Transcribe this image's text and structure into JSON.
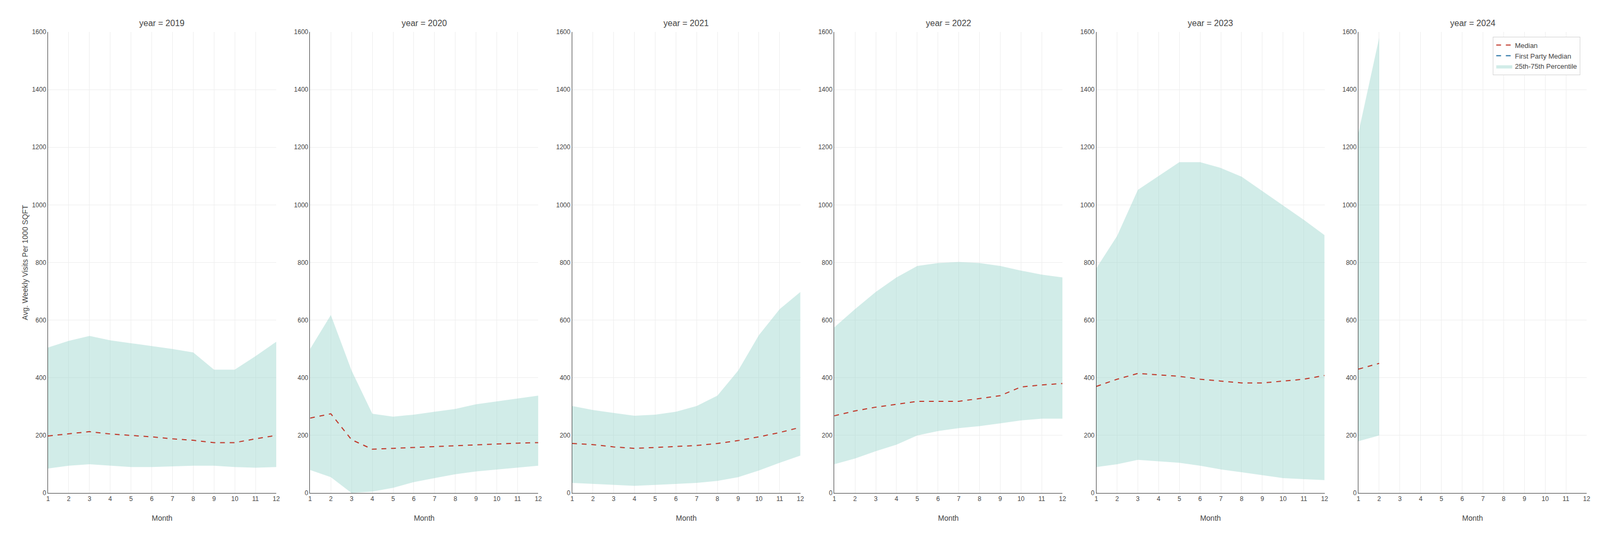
{
  "chart_data": [
    {
      "type": "line",
      "title": "year = 2019",
      "x_label": "Month",
      "y_label": "Avg. Weekly Visits Per 1000 SQFT",
      "x": [
        1,
        2,
        3,
        4,
        5,
        6,
        7,
        8,
        9,
        10,
        11,
        12
      ],
      "xlim": [
        1,
        12
      ],
      "xticks": [
        1,
        2,
        3,
        4,
        5,
        6,
        7,
        8,
        9,
        10,
        11,
        12
      ],
      "ylim": [
        0,
        1600
      ],
      "yticks": [
        0,
        200,
        400,
        600,
        800,
        1000,
        1200,
        1400,
        1600
      ],
      "grid": true,
      "series": [
        {
          "name": "Median",
          "type": "line",
          "color": "#c0392b",
          "line_style": "dashed",
          "values": [
            198,
            205,
            213,
            205,
            200,
            195,
            188,
            183,
            175,
            175,
            188,
            200
          ]
        },
        {
          "name": "25th-75th Percentile",
          "type": "area",
          "color": "#99d4cc",
          "lower": [
            85,
            95,
            100,
            95,
            90,
            90,
            92,
            95,
            95,
            90,
            88,
            90
          ],
          "upper": [
            505,
            528,
            545,
            530,
            520,
            510,
            500,
            488,
            428,
            428,
            475,
            525
          ]
        }
      ]
    },
    {
      "type": "line",
      "title": "year = 2020",
      "x_label": "Month",
      "x": [
        1,
        2,
        3,
        4,
        5,
        6,
        7,
        8,
        9,
        10,
        11,
        12
      ],
      "xlim": [
        1,
        12
      ],
      "xticks": [
        1,
        2,
        3,
        4,
        5,
        6,
        7,
        8,
        9,
        10,
        11,
        12
      ],
      "ylim": [
        0,
        1600
      ],
      "yticks": [
        0,
        200,
        400,
        600,
        800,
        1000,
        1200,
        1400,
        1600
      ],
      "grid": true,
      "series": [
        {
          "name": "Median",
          "type": "line",
          "color": "#c0392b",
          "line_style": "dashed",
          "values": [
            260,
            275,
            185,
            152,
            155,
            158,
            162,
            165,
            168,
            170,
            173,
            175
          ]
        },
        {
          "name": "25th-75th Percentile",
          "type": "area",
          "color": "#99d4cc",
          "lower": [
            80,
            55,
            0,
            5,
            18,
            38,
            52,
            65,
            75,
            82,
            88,
            95
          ],
          "upper": [
            500,
            618,
            425,
            275,
            265,
            272,
            282,
            292,
            308,
            318,
            328,
            338
          ]
        }
      ]
    },
    {
      "type": "line",
      "title": "year = 2021",
      "x_label": "Month",
      "x": [
        1,
        2,
        3,
        4,
        5,
        6,
        7,
        8,
        9,
        10,
        11,
        12
      ],
      "xlim": [
        1,
        12
      ],
      "xticks": [
        1,
        2,
        3,
        4,
        5,
        6,
        7,
        8,
        9,
        10,
        11,
        12
      ],
      "ylim": [
        0,
        1600
      ],
      "yticks": [
        0,
        200,
        400,
        600,
        800,
        1000,
        1200,
        1400,
        1600
      ],
      "grid": true,
      "series": [
        {
          "name": "Median",
          "type": "line",
          "color": "#c0392b",
          "line_style": "dashed",
          "values": [
            172,
            168,
            160,
            155,
            158,
            162,
            165,
            172,
            182,
            195,
            210,
            228
          ]
        },
        {
          "name": "25th-75th Percentile",
          "type": "area",
          "color": "#99d4cc",
          "lower": [
            35,
            32,
            28,
            25,
            28,
            32,
            35,
            42,
            55,
            78,
            105,
            130
          ],
          "upper": [
            302,
            288,
            278,
            268,
            272,
            282,
            302,
            338,
            425,
            548,
            638,
            698
          ]
        }
      ]
    },
    {
      "type": "line",
      "title": "year = 2022",
      "x_label": "Month",
      "x": [
        1,
        2,
        3,
        4,
        5,
        6,
        7,
        8,
        9,
        10,
        11,
        12
      ],
      "xlim": [
        1,
        12
      ],
      "xticks": [
        1,
        2,
        3,
        4,
        5,
        6,
        7,
        8,
        9,
        10,
        11,
        12
      ],
      "ylim": [
        0,
        1600
      ],
      "yticks": [
        0,
        200,
        400,
        600,
        800,
        1000,
        1200,
        1400,
        1600
      ],
      "grid": true,
      "series": [
        {
          "name": "Median",
          "type": "line",
          "color": "#c0392b",
          "line_style": "dashed",
          "values": [
            268,
            285,
            298,
            308,
            318,
            318,
            318,
            328,
            338,
            368,
            375,
            380
          ]
        },
        {
          "name": "25th-75th Percentile",
          "type": "area",
          "color": "#99d4cc",
          "lower": [
            100,
            120,
            145,
            168,
            200,
            215,
            225,
            232,
            242,
            252,
            258,
            258
          ],
          "upper": [
            575,
            638,
            698,
            748,
            788,
            798,
            802,
            798,
            788,
            772,
            758,
            748
          ]
        }
      ]
    },
    {
      "type": "line",
      "title": "year = 2023",
      "x_label": "Month",
      "x": [
        1,
        2,
        3,
        4,
        5,
        6,
        7,
        8,
        9,
        10,
        11,
        12
      ],
      "xlim": [
        1,
        12
      ],
      "xticks": [
        1,
        2,
        3,
        4,
        5,
        6,
        7,
        8,
        9,
        10,
        11,
        12
      ],
      "ylim": [
        0,
        1600
      ],
      "yticks": [
        0,
        200,
        400,
        600,
        800,
        1000,
        1200,
        1400,
        1600
      ],
      "grid": true,
      "series": [
        {
          "name": "Median",
          "type": "line",
          "color": "#c0392b",
          "line_style": "dashed",
          "values": [
            370,
            395,
            415,
            410,
            405,
            395,
            388,
            382,
            382,
            388,
            395,
            408
          ]
        },
        {
          "name": "25th-75th Percentile",
          "type": "area",
          "color": "#99d4cc",
          "lower": [
            90,
            100,
            115,
            110,
            105,
            95,
            82,
            72,
            62,
            52,
            48,
            45
          ],
          "upper": [
            780,
            892,
            1052,
            1100,
            1148,
            1148,
            1128,
            1098,
            1048,
            998,
            948,
            895
          ]
        }
      ]
    },
    {
      "type": "line",
      "title": "year = 2024",
      "x_label": "Month",
      "x": [
        1,
        2
      ],
      "xlim": [
        1,
        12
      ],
      "xticks": [
        1,
        2,
        3,
        4,
        5,
        6,
        7,
        8,
        9,
        10,
        11,
        12
      ],
      "ylim": [
        0,
        1600
      ],
      "yticks": [
        0,
        200,
        400,
        600,
        800,
        1000,
        1200,
        1400,
        1600
      ],
      "grid": true,
      "legend": "upper right",
      "series": [
        {
          "name": "Median",
          "type": "line",
          "color": "#c0392b",
          "line_style": "dashed",
          "values": [
            430,
            450
          ]
        },
        {
          "name": "First Party Median",
          "type": "line",
          "color": "#2471a3",
          "line_style": "dashed",
          "values": [
            null,
            null
          ]
        },
        {
          "name": "25th-75th Percentile",
          "type": "area",
          "color": "#99d4cc",
          "lower": [
            180,
            200
          ],
          "upper": [
            1250,
            1580
          ]
        }
      ]
    }
  ]
}
